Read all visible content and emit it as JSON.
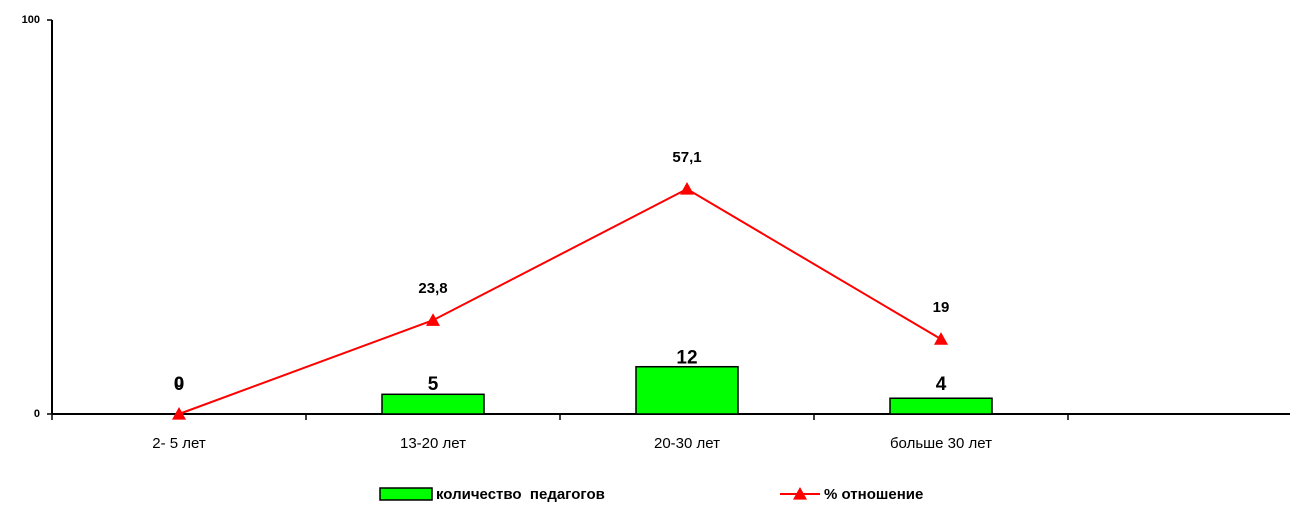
{
  "chart_data": {
    "type": "bar_line",
    "categories": [
      "2- 5  лет",
      "13-20 лет",
      "20-30 лет",
      "больше 30 лет",
      null
    ],
    "series": [
      {
        "name": "количество  педагогов",
        "type": "bar",
        "color": "#00ff00",
        "values": [
          0,
          5,
          12,
          4,
          null
        ]
      },
      {
        "name": "% отношение",
        "type": "line",
        "color": "#ff0000",
        "values": [
          0,
          23.8,
          57.1,
          19,
          null
        ],
        "value_labels": [
          "0",
          "23,8",
          "57,1",
          "19",
          null
        ]
      }
    ],
    "ylim": [
      0,
      100
    ],
    "yticks": [
      0,
      100
    ],
    "legend": "bottom"
  }
}
